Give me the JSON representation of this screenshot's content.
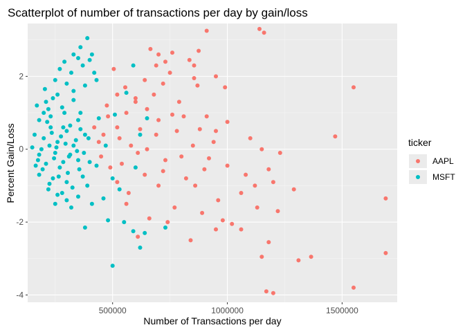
{
  "chart_data": {
    "type": "scatter",
    "title": "Scatterplot of number of transactions per day by gain/loss",
    "xlabel": "Number of Transactions per day",
    "ylabel": "Percent Gain/Loss",
    "xlim": [
      130000,
      1740000
    ],
    "ylim": [
      -4.2,
      3.45
    ],
    "x_ticks": [
      500000,
      1000000,
      1500000
    ],
    "x_tick_labels": [
      "500000",
      "1000000",
      "1500000"
    ],
    "y_ticks": [
      -4,
      -2,
      0,
      2
    ],
    "y_tick_labels": [
      "-4",
      "-2",
      "0",
      "2"
    ],
    "grid": true,
    "legend": {
      "title": "ticker",
      "position": "right"
    },
    "series": [
      {
        "name": "AAPL",
        "color": "#F8766D",
        "points": [
          [
            1140000,
            3.3
          ],
          [
            1160000,
            3.2
          ],
          [
            910000,
            3.25
          ],
          [
            665000,
            2.75
          ],
          [
            760000,
            2.65
          ],
          [
            875000,
            2.7
          ],
          [
            700000,
            2.6
          ],
          [
            505000,
            2.2
          ],
          [
            690000,
            2.3
          ],
          [
            730000,
            2.4
          ],
          [
            835000,
            2.45
          ],
          [
            855000,
            2.3
          ],
          [
            750000,
            2.1
          ],
          [
            855000,
            1.95
          ],
          [
            950000,
            2.0
          ],
          [
            555000,
            1.7
          ],
          [
            640000,
            1.9
          ],
          [
            720000,
            1.8
          ],
          [
            870000,
            1.75
          ],
          [
            990000,
            1.7
          ],
          [
            1550000,
            1.7
          ],
          [
            600000,
            1.4
          ],
          [
            680000,
            1.5
          ],
          [
            790000,
            1.3
          ],
          [
            475000,
            1.2
          ],
          [
            560000,
            1.0
          ],
          [
            650000,
            1.1
          ],
          [
            810000,
            0.9
          ],
          [
            910000,
            0.9
          ],
          [
            1000000,
            0.75
          ],
          [
            700000,
            0.8
          ],
          [
            1470000,
            0.35
          ],
          [
            950000,
            0.5
          ],
          [
            520000,
            0.6
          ],
          [
            620000,
            0.55
          ],
          [
            780000,
            0.5
          ],
          [
            1100000,
            0.3
          ],
          [
            440000,
            0.2
          ],
          [
            580000,
            0.1
          ],
          [
            650000,
            0.0
          ],
          [
            850000,
            0.1
          ],
          [
            1150000,
            0.0
          ],
          [
            1230000,
            -0.1
          ],
          [
            920000,
            -0.25
          ],
          [
            1000000,
            -0.45
          ],
          [
            730000,
            -0.3
          ],
          [
            490000,
            -0.5
          ],
          [
            640000,
            -0.7
          ],
          [
            820000,
            -0.8
          ],
          [
            1080000,
            -0.7
          ],
          [
            1180000,
            -0.55
          ],
          [
            520000,
            -0.9
          ],
          [
            700000,
            -1.0
          ],
          [
            860000,
            -1.0
          ],
          [
            1060000,
            -1.2
          ],
          [
            1120000,
            -1.0
          ],
          [
            1200000,
            -0.9
          ],
          [
            1290000,
            -1.1
          ],
          [
            1690000,
            -1.35
          ],
          [
            960000,
            -1.4
          ],
          [
            1130000,
            -1.6
          ],
          [
            1220000,
            -1.7
          ],
          [
            560000,
            -1.5
          ],
          [
            770000,
            -1.6
          ],
          [
            890000,
            -1.75
          ],
          [
            980000,
            -1.95
          ],
          [
            1020000,
            -2.05
          ],
          [
            1060000,
            -2.2
          ],
          [
            660000,
            -1.9
          ],
          [
            740000,
            -2.0
          ],
          [
            610000,
            -2.4
          ],
          [
            840000,
            -2.5
          ],
          [
            950000,
            -2.2
          ],
          [
            1180000,
            -2.55
          ],
          [
            1150000,
            -2.95
          ],
          [
            1310000,
            -3.05
          ],
          [
            1365000,
            -2.95
          ],
          [
            1690000,
            -2.85
          ],
          [
            1550000,
            -3.8
          ],
          [
            1170000,
            -3.9
          ],
          [
            1200000,
            -3.95
          ],
          [
            420000,
            0.6
          ],
          [
            450000,
            -0.2
          ],
          [
            480000,
            0.9
          ],
          [
            530000,
            0.3
          ],
          [
            540000,
            -0.4
          ],
          [
            600000,
            1.3
          ],
          [
            610000,
            -0.1
          ],
          [
            690000,
            0.4
          ],
          [
            720000,
            -0.6
          ],
          [
            760000,
            0.95
          ],
          [
            800000,
            -0.2
          ],
          [
            880000,
            0.55
          ],
          [
            900000,
            -0.55
          ],
          [
            940000,
            0.2
          ],
          [
            520000,
            1.5
          ],
          [
            460000,
            0.4
          ],
          [
            570000,
            -1.2
          ]
        ]
      },
      {
        "name": "MSFT",
        "color": "#00BFC4",
        "points": [
          [
            390000,
            3.05
          ],
          [
            360000,
            2.8
          ],
          [
            330000,
            2.6
          ],
          [
            410000,
            2.6
          ],
          [
            290000,
            2.4
          ],
          [
            350000,
            2.5
          ],
          [
            400000,
            2.45
          ],
          [
            270000,
            2.2
          ],
          [
            320000,
            2.1
          ],
          [
            370000,
            2.3
          ],
          [
            250000,
            1.9
          ],
          [
            300000,
            1.8
          ],
          [
            380000,
            1.75
          ],
          [
            420000,
            2.1
          ],
          [
            590000,
            2.3
          ],
          [
            210000,
            1.3
          ],
          [
            260000,
            1.5
          ],
          [
            330000,
            1.35
          ],
          [
            220000,
            1.1
          ],
          [
            290000,
            1.0
          ],
          [
            360000,
            1.0
          ],
          [
            180000,
            0.8
          ],
          [
            230000,
            0.6
          ],
          [
            300000,
            0.5
          ],
          [
            350000,
            0.8
          ],
          [
            200000,
            0.3
          ],
          [
            260000,
            0.2
          ],
          [
            330000,
            0.1
          ],
          [
            190000,
            0.0
          ],
          [
            250000,
            -0.1
          ],
          [
            310000,
            -0.2
          ],
          [
            380000,
            0.4
          ],
          [
            210000,
            -0.4
          ],
          [
            270000,
            -0.5
          ],
          [
            350000,
            -0.3
          ],
          [
            400000,
            -0.35
          ],
          [
            180000,
            -0.7
          ],
          [
            240000,
            -0.8
          ],
          [
            300000,
            -0.9
          ],
          [
            220000,
            -1.1
          ],
          [
            280000,
            -1.2
          ],
          [
            350000,
            -1.3
          ],
          [
            250000,
            -1.5
          ],
          [
            320000,
            -1.6
          ],
          [
            410000,
            -1.5
          ],
          [
            380000,
            -2.15
          ],
          [
            480000,
            -1.95
          ],
          [
            550000,
            -2.0
          ],
          [
            590000,
            -2.25
          ],
          [
            640000,
            -2.3
          ],
          [
            730000,
            -2.15
          ],
          [
            620000,
            -2.7
          ],
          [
            500000,
            -3.2
          ],
          [
            170000,
            1.2
          ],
          [
            200000,
            1.0
          ],
          [
            230000,
            0.9
          ],
          [
            160000,
            0.4
          ],
          [
            175000,
            -0.3
          ],
          [
            195000,
            -0.55
          ],
          [
            215000,
            0.75
          ],
          [
            235000,
            0.45
          ],
          [
            245000,
            -0.25
          ],
          [
            255000,
            0.05
          ],
          [
            265000,
            -0.75
          ],
          [
            275000,
            0.35
          ],
          [
            285000,
            -0.35
          ],
          [
            295000,
            0.15
          ],
          [
            305000,
            -0.65
          ],
          [
            315000,
            0.65
          ],
          [
            325000,
            -1.05
          ],
          [
            340000,
            0.25
          ],
          [
            345000,
            -0.05
          ],
          [
            360000,
            0.55
          ],
          [
            370000,
            -0.75
          ],
          [
            390000,
            -1.0
          ],
          [
            395000,
            0.3
          ],
          [
            430000,
            -0.45
          ],
          [
            440000,
            0.85
          ],
          [
            460000,
            -1.35
          ],
          [
            470000,
            0.1
          ],
          [
            500000,
            -0.8
          ],
          [
            510000,
            0.95
          ],
          [
            530000,
            -1.1
          ],
          [
            180000,
            -0.15
          ],
          [
            205000,
            1.65
          ],
          [
            225000,
            -0.95
          ],
          [
            240000,
            1.4
          ],
          [
            260000,
            -1.25
          ],
          [
            280000,
            1.15
          ],
          [
            300000,
            -1.4
          ],
          [
            330000,
            1.6
          ],
          [
            355000,
            -0.55
          ],
          [
            430000,
            1.9
          ],
          [
            150000,
            0.05
          ],
          [
            165000,
            -0.45
          ],
          [
            225000,
            0.1
          ],
          [
            285000,
            0.6
          ],
          [
            315000,
            -0.15
          ],
          [
            375000,
            -0.1
          ],
          [
            560000,
            1.55
          ],
          [
            600000,
            -0.5
          ],
          [
            620000,
            0.4
          ],
          [
            650000,
            0.85
          ]
        ]
      }
    ]
  }
}
